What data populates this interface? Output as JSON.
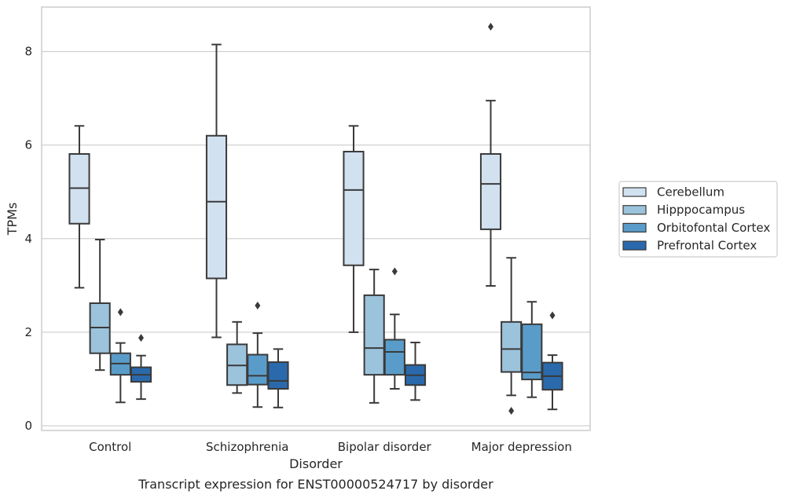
{
  "chart_data": {
    "type": "box",
    "caption": "Transcript expression for ENST00000524717 by disorder",
    "xlabel": "Disorder",
    "ylabel": "TPMs",
    "ylim": [
      -0.1,
      8.95
    ],
    "yticks": [
      0,
      2,
      4,
      6,
      8
    ],
    "grid": "horizontal",
    "legend_position": "right",
    "categories": [
      "Control",
      "Schizophrenia",
      "Bipolar disorder",
      "Major depression"
    ],
    "series": [
      {
        "name": "Cerebellum",
        "color": "#d2e1f0",
        "boxes": [
          {
            "whisker_low": 2.95,
            "q1": 4.32,
            "median": 5.08,
            "q3": 5.81,
            "whisker_high": 6.41,
            "outliers": []
          },
          {
            "whisker_low": 1.89,
            "q1": 3.15,
            "median": 4.79,
            "q3": 6.2,
            "whisker_high": 8.15,
            "outliers": []
          },
          {
            "whisker_low": 2.0,
            "q1": 3.43,
            "median": 5.04,
            "q3": 5.86,
            "whisker_high": 6.41,
            "outliers": []
          },
          {
            "whisker_low": 2.99,
            "q1": 4.2,
            "median": 5.17,
            "q3": 5.81,
            "whisker_high": 6.95,
            "outliers": [
              8.53
            ]
          }
        ]
      },
      {
        "name": "Hipppocampus",
        "color": "#9cc3dc",
        "boxes": [
          {
            "whisker_low": 1.19,
            "q1": 1.55,
            "median": 2.1,
            "q3": 2.62,
            "whisker_high": 3.98,
            "outliers": []
          },
          {
            "whisker_low": 0.7,
            "q1": 0.87,
            "median": 1.29,
            "q3": 1.74,
            "whisker_high": 2.22,
            "outliers": []
          },
          {
            "whisker_low": 0.49,
            "q1": 1.09,
            "median": 1.66,
            "q3": 2.79,
            "whisker_high": 3.34,
            "outliers": []
          },
          {
            "whisker_low": 0.65,
            "q1": 1.15,
            "median": 1.64,
            "q3": 2.22,
            "whisker_high": 3.59,
            "outliers": [
              0.32
            ]
          }
        ]
      },
      {
        "name": "Orbitofontal Cortex",
        "color": "#5a9cc9",
        "boxes": [
          {
            "whisker_low": 0.5,
            "q1": 1.09,
            "median": 1.33,
            "q3": 1.55,
            "whisker_high": 1.77,
            "outliers": [
              2.43
            ]
          },
          {
            "whisker_low": 0.4,
            "q1": 0.88,
            "median": 1.07,
            "q3": 1.52,
            "whisker_high": 1.98,
            "outliers": [
              2.57
            ]
          },
          {
            "whisker_low": 0.79,
            "q1": 1.09,
            "median": 1.58,
            "q3": 1.84,
            "whisker_high": 2.38,
            "outliers": [
              3.3
            ]
          },
          {
            "whisker_low": 0.61,
            "q1": 0.99,
            "median": 1.14,
            "q3": 2.17,
            "whisker_high": 2.65,
            "outliers": []
          }
        ]
      },
      {
        "name": "Prefrontal Cortex",
        "color": "#2a6aac",
        "boxes": [
          {
            "whisker_low": 0.57,
            "q1": 0.94,
            "median": 1.09,
            "q3": 1.25,
            "whisker_high": 1.5,
            "outliers": [
              1.88
            ]
          },
          {
            "whisker_low": 0.39,
            "q1": 0.79,
            "median": 0.96,
            "q3": 1.36,
            "whisker_high": 1.64,
            "outliers": []
          },
          {
            "whisker_low": 0.55,
            "q1": 0.87,
            "median": 1.08,
            "q3": 1.3,
            "whisker_high": 1.78,
            "outliers": []
          },
          {
            "whisker_low": 0.35,
            "q1": 0.77,
            "median": 1.06,
            "q3": 1.35,
            "whisker_high": 1.51,
            "outliers": [
              2.36
            ]
          }
        ]
      }
    ]
  }
}
